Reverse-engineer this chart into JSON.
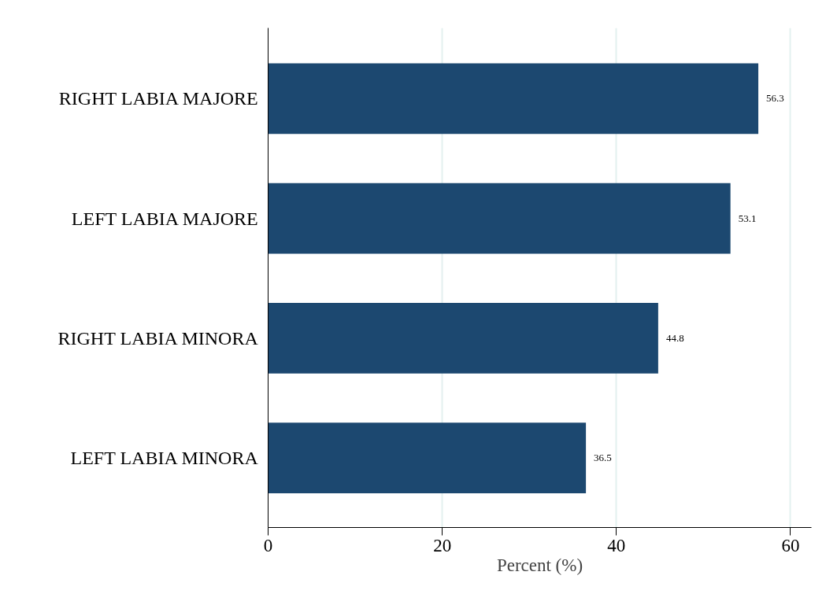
{
  "chart_data": {
    "type": "bar",
    "orientation": "horizontal",
    "xlabel": "Percent (%)",
    "categories": [
      "RIGHT LABIA MAJORE",
      "LEFT LABIA MAJORE",
      "RIGHT LABIA MINORA",
      "LEFT LABIA MINORA"
    ],
    "values": [
      56.3,
      53.1,
      44.8,
      36.5
    ],
    "color": "#1c4870",
    "xlim": [
      0,
      62.4
    ],
    "xticks": [
      0,
      20,
      40,
      60
    ],
    "grid": "x",
    "data_labels": true
  }
}
